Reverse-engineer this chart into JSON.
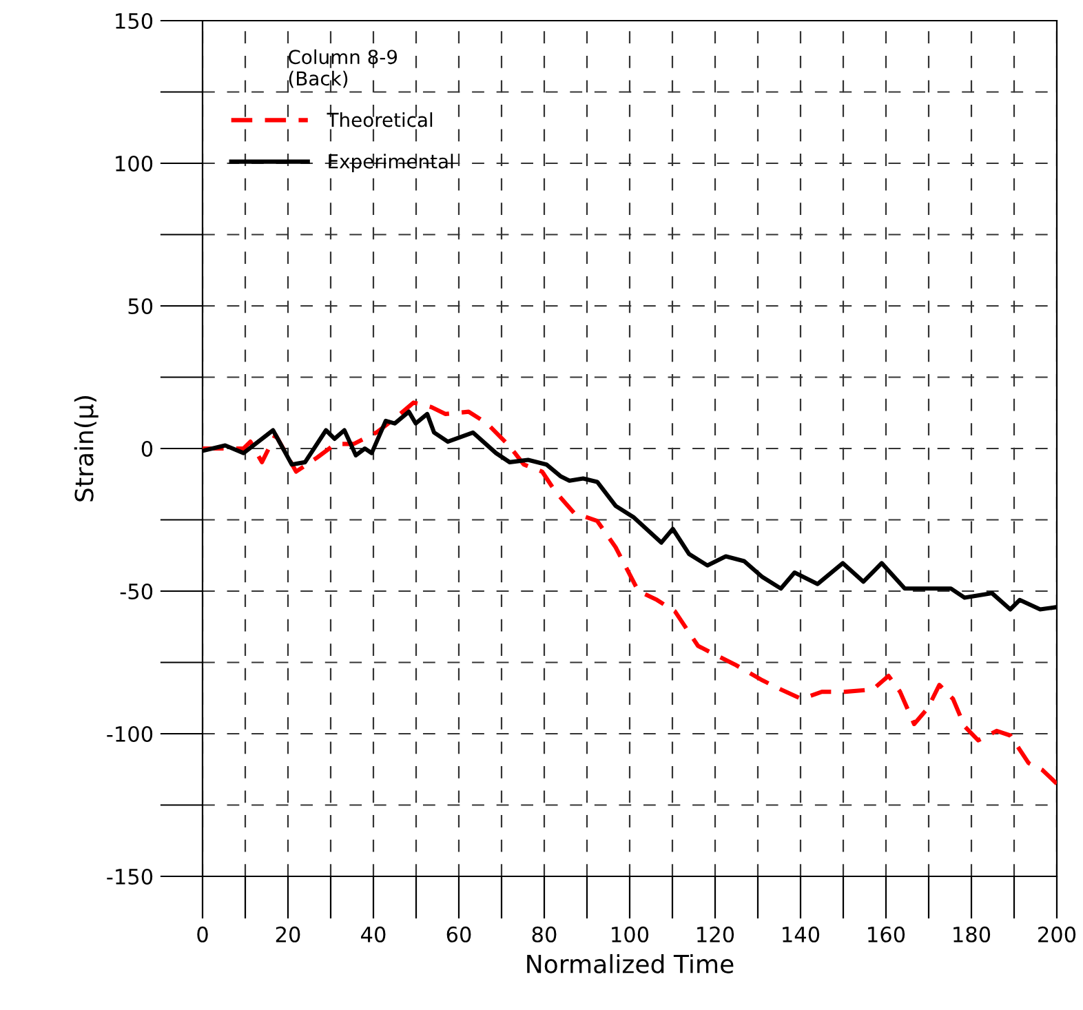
{
  "chart_data": {
    "type": "line",
    "xlabel": "Normalized Time",
    "ylabel": "Strain(μ)",
    "legend_title": "Column 8-9\n(Back)",
    "legend": "top left",
    "grid": true,
    "xlim": [
      0,
      200
    ],
    "ylim": [
      -150,
      150
    ],
    "xticks": [
      0,
      {
        "value": 10,
        "label": null
      },
      20,
      {
        "value": 30,
        "label": null
      },
      40,
      {
        "value": 50,
        "label": null
      },
      60,
      {
        "value": 70,
        "label": null
      },
      80,
      {
        "value": 90,
        "label": null
      },
      100,
      {
        "value": 110,
        "label": null
      },
      120,
      {
        "value": 130,
        "label": null
      },
      140,
      {
        "value": 150,
        "label": null
      },
      160,
      {
        "value": 170,
        "label": null
      },
      180,
      {
        "value": 190,
        "label": null
      },
      200
    ],
    "yticks": [
      -150,
      {
        "value": -125,
        "label": null
      },
      -100,
      {
        "value": -75,
        "label": null
      },
      -50,
      {
        "value": -25,
        "label": null
      },
      0,
      {
        "value": 25,
        "label": null
      },
      50,
      {
        "value": 75,
        "label": null
      },
      100,
      {
        "value": 125,
        "label": null
      },
      150
    ],
    "series": [
      {
        "name": "Theoretical",
        "color": "#ff0000",
        "line_style": "dashed",
        "x": [
          0,
          9.6,
          11.2,
          13.9,
          17.1,
          21.9,
          26.8,
          31.1,
          35.4,
          40.7,
          45,
          49.4,
          53.6,
          56.9,
          62.3,
          66.6,
          71.9,
          75.2,
          79.5,
          82.7,
          87,
          92.4,
          96.7,
          102,
          106.4,
          110.6,
          116,
          120.3,
          124.6,
          131.1,
          135.4,
          140.2,
          145,
          150.4,
          156.9,
          160.6,
          163.3,
          166.6,
          169.8,
          172.5,
          175.7,
          178.4,
          181.6,
          185.9,
          189.1,
          193.4,
          196.6,
          200
        ],
        "values": [
          0,
          0,
          2.4,
          -4.8,
          4.8,
          -8.1,
          -3.2,
          1.6,
          1.6,
          5.6,
          10.5,
          16.1,
          14.5,
          12.1,
          12.9,
          8.8,
          0.8,
          -5.6,
          -8.1,
          -15.3,
          -22.6,
          -25.4,
          -34.6,
          -49.9,
          -53.1,
          -57.1,
          -69.2,
          -72.5,
          -75.7,
          -81.3,
          -84.5,
          -87.8,
          -85.3,
          -85.3,
          -84.5,
          -79.7,
          -85.3,
          -96.6,
          -91,
          -82.9,
          -87.8,
          -97.4,
          -102.3,
          -99,
          -100.6,
          -110.3,
          -112.7,
          -117.5
        ]
      },
      {
        "name": "Experimental",
        "color": "#000000",
        "line_style": "solid",
        "x": [
          0,
          5.3,
          9.6,
          16.5,
          20.9,
          24,
          28.9,
          30.9,
          33.2,
          35.9,
          38,
          39.6,
          42.9,
          45,
          48.3,
          49.9,
          52.6,
          54.2,
          57.4,
          63.3,
          68.7,
          71.9,
          76.2,
          80.5,
          83.8,
          85.9,
          89.1,
          92.4,
          96.7,
          101,
          107.4,
          110.1,
          113.9,
          118.2,
          122.5,
          126.8,
          131.1,
          135.4,
          138.6,
          144,
          149.9,
          154.7,
          159,
          164.4,
          169.8,
          175.2,
          178.4,
          184.8,
          189.1,
          191.3,
          196.1,
          200
        ],
        "values": [
          -0.8,
          1.1,
          -1.6,
          6.4,
          -5.6,
          -4.8,
          6.4,
          3.4,
          6.4,
          -2.4,
          0,
          -1.6,
          9.7,
          8.8,
          12.9,
          8.8,
          12.1,
          5.6,
          2.4,
          5.6,
          -1.6,
          -4.8,
          -4,
          -5.6,
          -9.7,
          -11.3,
          -10.5,
          -11.7,
          -20.1,
          -24.2,
          -33,
          -28.2,
          -37,
          -41,
          -37.8,
          -39.5,
          -45.1,
          -49.1,
          -43.5,
          -47.5,
          -40.2,
          -46.7,
          -40.2,
          -49.1,
          -49.1,
          -49.1,
          -52.3,
          -50.7,
          -56.4,
          -53.1,
          -56.4,
          -55.6
        ]
      }
    ]
  }
}
